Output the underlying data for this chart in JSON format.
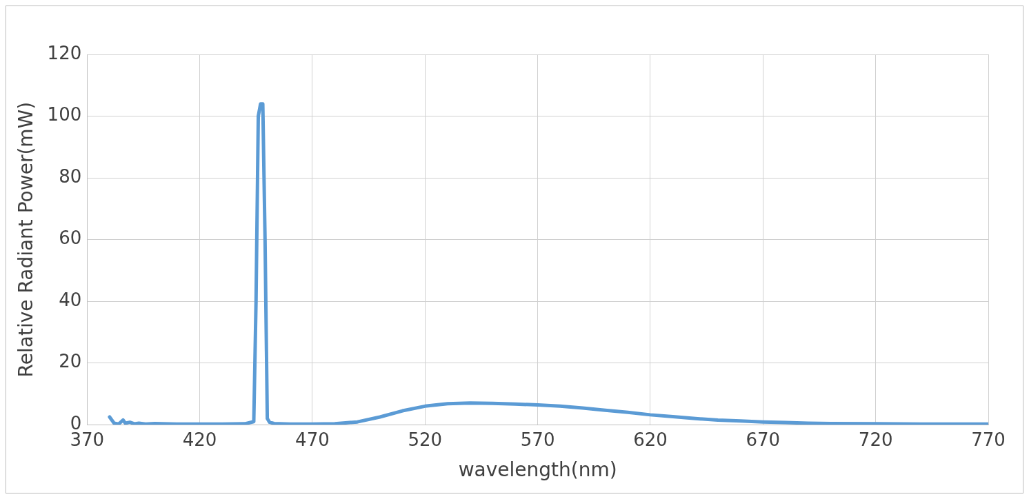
{
  "chart_data": {
    "type": "line",
    "xlabel": "wavelength(nm)",
    "ylabel": "Relative Radiant Power(mW)",
    "xlim": [
      370,
      770
    ],
    "xticks": [
      370,
      420,
      470,
      520,
      570,
      620,
      670,
      720,
      770
    ],
    "ylim": [
      0,
      120
    ],
    "yticks": [
      0,
      20,
      40,
      60,
      80,
      100,
      120
    ],
    "grid": true,
    "legend": false,
    "marker": "none",
    "series": [
      {
        "color": "#5b9bd5",
        "x": [
          380,
          382,
          384,
          386,
          387,
          389,
          391,
          393,
          396,
          400,
          410,
          420,
          430,
          440,
          444,
          445,
          446,
          447,
          448,
          449,
          450,
          451,
          453,
          460,
          470,
          480,
          490,
          500,
          510,
          520,
          530,
          540,
          550,
          560,
          570,
          580,
          590,
          600,
          610,
          620,
          630,
          640,
          650,
          660,
          670,
          680,
          690,
          700,
          720,
          740,
          770
        ],
        "values": [
          2.5,
          0.5,
          0.2,
          1.5,
          0.5,
          0.8,
          0.3,
          0.5,
          0.2,
          0.4,
          0.2,
          0.2,
          0.2,
          0.3,
          1,
          40,
          100,
          104,
          104,
          60,
          2,
          0.8,
          0.4,
          0.2,
          0.2,
          0.3,
          0.9,
          2.5,
          4.5,
          6,
          6.8,
          7,
          6.9,
          6.7,
          6.4,
          6,
          5.4,
          4.7,
          4,
          3.2,
          2.6,
          2,
          1.5,
          1.2,
          0.9,
          0.7,
          0.5,
          0.4,
          0.3,
          0.2,
          0.2
        ]
      }
    ]
  }
}
